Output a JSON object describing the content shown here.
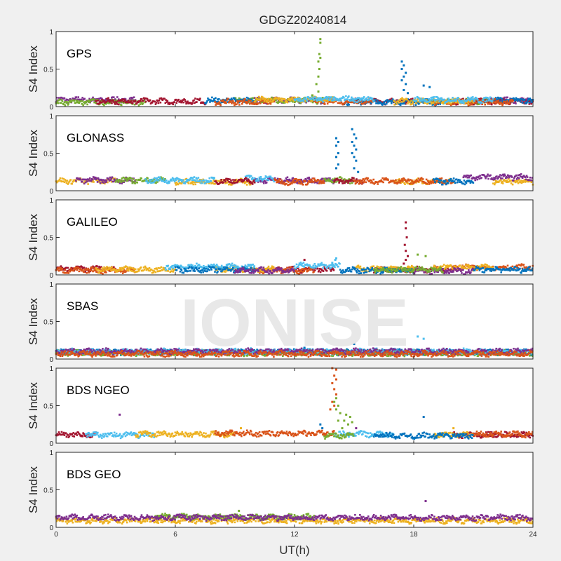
{
  "chart_data": {
    "type": "scatter",
    "title": "GDGZ20240814",
    "xlabel": "UT(h)",
    "ylabel": "S4 Index",
    "xlim": [
      0,
      24
    ],
    "ylim": [
      0,
      1
    ],
    "xticks": [
      "0",
      "6",
      "12",
      "18",
      "24"
    ],
    "yticks": [
      "0",
      "0.5",
      "1"
    ],
    "watermark": "IONISE",
    "colors": {
      "blue": "#0072BD",
      "orange": "#D95319",
      "yellow": "#EDB120",
      "purple": "#7E2F8E",
      "green": "#77AC30",
      "lightblue": "#4DBEEE",
      "red": "#A2142F"
    },
    "panels": [
      {
        "label": "GPS",
        "series": [
          {
            "color": "purple",
            "segments": [
              [
                0,
                4,
                0.09
              ],
              [
                10,
                14,
                0.08
              ],
              [
                21,
                24,
                0.08
              ]
            ]
          },
          {
            "color": "green",
            "segments": [
              [
                0,
                4.5,
                0.06
              ],
              [
                9,
                13.5,
                0.08
              ],
              [
                19,
                22,
                0.07
              ]
            ]
          },
          {
            "color": "red",
            "segments": [
              [
                2,
                7.5,
                0.07
              ],
              [
                15,
                18,
                0.07
              ],
              [
                20,
                24,
                0.07
              ]
            ]
          },
          {
            "color": "blue",
            "segments": [
              [
                7.5,
                10,
                0.08
              ],
              [
                14.5,
                19.5,
                0.06
              ],
              [
                22,
                24,
                0.08
              ]
            ]
          },
          {
            "color": "orange",
            "segments": [
              [
                8,
                11,
                0.06
              ],
              [
                13,
                16,
                0.07
              ],
              [
                19,
                23,
                0.06
              ]
            ]
          },
          {
            "color": "yellow",
            "segments": [
              [
                10,
                14,
                0.09
              ],
              [
                17,
                21,
                0.07
              ]
            ]
          },
          {
            "color": "lightblue",
            "segments": [
              [
                12,
                16,
                0.1
              ],
              [
                18,
                22,
                0.09
              ]
            ]
          }
        ],
        "spikes": [
          {
            "color": "green",
            "points": [
              [
                13.3,
                0.9
              ],
              [
                13.3,
                0.85
              ],
              [
                13.25,
                0.7
              ],
              [
                13.3,
                0.65
              ],
              [
                13.2,
                0.6
              ],
              [
                13.25,
                0.5
              ],
              [
                13.2,
                0.4
              ],
              [
                13.1,
                0.3
              ],
              [
                13.2,
                0.2
              ],
              [
                12.9,
                0.15
              ]
            ]
          },
          {
            "color": "blue",
            "points": [
              [
                17.4,
                0.6
              ],
              [
                17.5,
                0.55
              ],
              [
                17.4,
                0.5
              ],
              [
                17.6,
                0.45
              ],
              [
                17.5,
                0.4
              ],
              [
                17.4,
                0.35
              ],
              [
                17.6,
                0.3
              ],
              [
                17.5,
                0.22
              ],
              [
                17.7,
                0.18
              ],
              [
                18.5,
                0.28
              ],
              [
                18.8,
                0.26
              ]
            ]
          }
        ]
      },
      {
        "label": "GLONASS",
        "series": [
          {
            "color": "yellow",
            "segments": [
              [
                0,
                3,
                0.13
              ],
              [
                6,
                10,
                0.12
              ],
              [
                17,
                20,
                0.12
              ],
              [
                22,
                24,
                0.12
              ]
            ]
          },
          {
            "color": "purple",
            "segments": [
              [
                1,
                4,
                0.14
              ],
              [
                10,
                14,
                0.14
              ],
              [
                20.5,
                24,
                0.18
              ]
            ]
          },
          {
            "color": "green",
            "segments": [
              [
                3,
                5.5,
                0.14
              ],
              [
                13.5,
                15,
                0.14
              ]
            ]
          },
          {
            "color": "lightblue",
            "segments": [
              [
                4.5,
                8,
                0.14
              ],
              [
                9.5,
                11,
                0.16
              ]
            ]
          },
          {
            "color": "red",
            "segments": [
              [
                8,
                10,
                0.13
              ],
              [
                14,
                15.5,
                0.13
              ]
            ]
          },
          {
            "color": "orange",
            "segments": [
              [
                11,
                13.5,
                0.12
              ],
              [
                15,
                20,
                0.13
              ]
            ]
          },
          {
            "color": "blue",
            "segments": [
              [
                19,
                21,
                0.12
              ]
            ]
          }
        ],
        "spikes": [
          {
            "color": "blue",
            "points": [
              [
                14.1,
                0.7
              ],
              [
                14.2,
                0.65
              ],
              [
                14.1,
                0.6
              ],
              [
                14.2,
                0.5
              ],
              [
                14.1,
                0.45
              ],
              [
                14.2,
                0.35
              ],
              [
                14.1,
                0.3
              ],
              [
                14.9,
                0.82
              ],
              [
                15.0,
                0.75
              ],
              [
                15.1,
                0.7
              ],
              [
                14.9,
                0.65
              ],
              [
                15.0,
                0.6
              ],
              [
                15.1,
                0.55
              ],
              [
                14.9,
                0.5
              ],
              [
                15.0,
                0.45
              ],
              [
                15.1,
                0.4
              ],
              [
                15.0,
                0.3
              ],
              [
                15.2,
                0.25
              ]
            ]
          }
        ]
      },
      {
        "label": "GALILEO",
        "series": [
          {
            "color": "red",
            "segments": [
              [
                0,
                3,
                0.08
              ],
              [
                11,
                14,
                0.07
              ],
              [
                16,
                20,
                0.07
              ]
            ]
          },
          {
            "color": "orange",
            "segments": [
              [
                0,
                4,
                0.06
              ],
              [
                10,
                13,
                0.06
              ],
              [
                20,
                24,
                0.1
              ]
            ]
          },
          {
            "color": "yellow",
            "segments": [
              [
                2,
                6,
                0.07
              ],
              [
                8,
                11,
                0.08
              ],
              [
                15,
                18,
                0.08
              ],
              [
                19,
                22,
                0.1
              ]
            ]
          },
          {
            "color": "lightblue",
            "segments": [
              [
                5.5,
                10,
                0.11
              ],
              [
                12,
                14.3,
                0.12
              ]
            ]
          },
          {
            "color": "blue",
            "segments": [
              [
                6,
                10,
                0.07
              ],
              [
                14.3,
                18,
                0.06
              ],
              [
                21,
                24,
                0.07
              ]
            ]
          },
          {
            "color": "purple",
            "segments": [
              [
                9,
                12,
                0.06
              ],
              [
                18,
                21,
                0.05
              ]
            ]
          },
          {
            "color": "green",
            "segments": [
              [
                16,
                19.5,
                0.07
              ]
            ]
          }
        ],
        "spikes": [
          {
            "color": "red",
            "points": [
              [
                17.6,
                0.7
              ],
              [
                17.6,
                0.62
              ],
              [
                17.65,
                0.5
              ],
              [
                17.55,
                0.4
              ],
              [
                17.6,
                0.32
              ],
              [
                17.7,
                0.25
              ],
              [
                17.6,
                0.2
              ],
              [
                17.5,
                0.15
              ]
            ]
          },
          {
            "color": "green",
            "points": [
              [
                18.2,
                0.27
              ],
              [
                18.6,
                0.25
              ]
            ]
          },
          {
            "color": "lightblue",
            "points": [
              [
                14.1,
                0.22
              ],
              [
                14.05,
                0.2
              ],
              [
                13.9,
                0.16
              ]
            ]
          },
          {
            "color": "red",
            "points": [
              [
                12.5,
                0.2
              ]
            ]
          }
        ]
      },
      {
        "label": "SBAS",
        "series": [
          {
            "color": "blue",
            "segments": [
              [
                0,
                24,
                0.09
              ]
            ]
          },
          {
            "color": "green",
            "segments": [
              [
                0,
                24,
                0.08
              ]
            ]
          },
          {
            "color": "lightblue",
            "segments": [
              [
                0,
                24,
                0.1
              ]
            ]
          },
          {
            "color": "purple",
            "segments": [
              [
                0,
                24,
                0.1
              ]
            ]
          },
          {
            "color": "orange",
            "segments": [
              [
                0,
                24,
                0.07
              ]
            ]
          }
        ],
        "spikes": [
          {
            "color": "lightblue",
            "points": [
              [
                18.2,
                0.3
              ],
              [
                18.5,
                0.27
              ]
            ]
          },
          {
            "color": "blue",
            "points": [
              [
                15.0,
                0.2
              ],
              [
                12.5,
                0.15
              ]
            ]
          }
        ]
      },
      {
        "label": "BDS NGEO",
        "series": [
          {
            "color": "red",
            "segments": [
              [
                0,
                2,
                0.11
              ],
              [
                20,
                24,
                0.11
              ]
            ]
          },
          {
            "color": "lightblue",
            "segments": [
              [
                1.5,
                5,
                0.11
              ],
              [
                14,
                17,
                0.12
              ]
            ]
          },
          {
            "color": "yellow",
            "segments": [
              [
                4,
                9,
                0.12
              ],
              [
                19,
                21,
                0.11
              ]
            ]
          },
          {
            "color": "orange",
            "segments": [
              [
                8,
                14,
                0.13
              ],
              [
                21,
                24,
                0.12
              ]
            ]
          },
          {
            "color": "blue",
            "segments": [
              [
                16,
                21,
                0.1
              ]
            ]
          },
          {
            "color": "green",
            "segments": [
              [
                13.5,
                15,
                0.1
              ]
            ]
          }
        ],
        "spikes": [
          {
            "color": "orange",
            "points": [
              [
                13.9,
                1.0
              ],
              [
                14.1,
                0.98
              ],
              [
                14.0,
                0.9
              ],
              [
                14.1,
                0.85
              ],
              [
                13.9,
                0.8
              ],
              [
                14.0,
                0.72
              ],
              [
                14.1,
                0.65
              ],
              [
                13.9,
                0.55
              ],
              [
                14.0,
                0.5
              ],
              [
                13.8,
                0.45
              ]
            ]
          },
          {
            "color": "green",
            "points": [
              [
                14.1,
                0.6
              ],
              [
                14.0,
                0.55
              ],
              [
                14.2,
                0.5
              ],
              [
                14.1,
                0.45
              ],
              [
                14.3,
                0.4
              ],
              [
                14.6,
                0.38
              ],
              [
                14.8,
                0.35
              ],
              [
                14.5,
                0.3
              ],
              [
                14.9,
                0.28
              ],
              [
                14.7,
                0.25
              ],
              [
                14.2,
                0.3
              ],
              [
                14.4,
                0.2
              ]
            ]
          },
          {
            "color": "purple",
            "points": [
              [
                3.2,
                0.38
              ],
              [
                15.1,
                0.2
              ]
            ]
          },
          {
            "color": "blue",
            "points": [
              [
                18.5,
                0.35
              ],
              [
                13.3,
                0.25
              ],
              [
                13.4,
                0.2
              ]
            ]
          },
          {
            "color": "yellow",
            "points": [
              [
                9.3,
                0.2
              ],
              [
                20,
                0.2
              ]
            ]
          }
        ]
      },
      {
        "label": "BDS GEO",
        "series": [
          {
            "color": "yellow",
            "segments": [
              [
                0,
                24,
                0.09
              ]
            ]
          },
          {
            "color": "green",
            "segments": [
              [
                5,
                13,
                0.14
              ]
            ]
          },
          {
            "color": "purple",
            "segments": [
              [
                0,
                24,
                0.13
              ]
            ]
          }
        ],
        "spikes": [
          {
            "color": "purple",
            "points": [
              [
                18.6,
                0.35
              ]
            ]
          },
          {
            "color": "green",
            "points": [
              [
                9.2,
                0.22
              ]
            ]
          }
        ]
      }
    ]
  }
}
